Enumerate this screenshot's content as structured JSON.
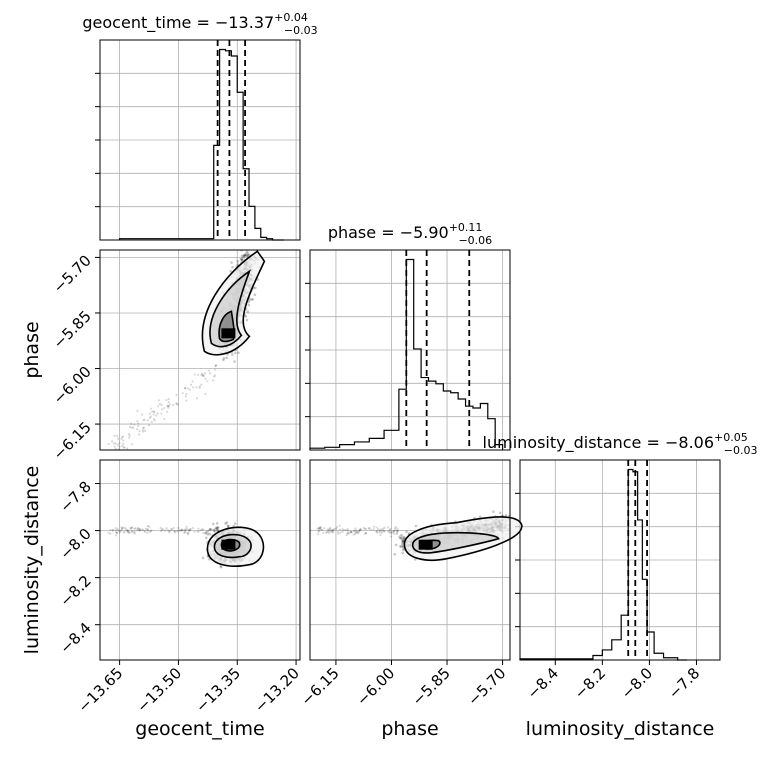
{
  "chart_data": {
    "type": "corner",
    "parameters": [
      {
        "name": "geocent_time",
        "xlabel": "geocent_time",
        "title": {
          "prefix": "geocent_time = −13.37",
          "plus": "+0.04",
          "minus": "−0.03"
        },
        "range": [
          -13.7,
          -13.19
        ],
        "ticks": [
          -13.65,
          -13.5,
          -13.35,
          -13.2
        ],
        "tick_labels": [
          "−13.65",
          "−13.50",
          "−13.35",
          "−13.20"
        ],
        "quantiles": [
          -13.4,
          -13.37,
          -13.33
        ],
        "hist_edges": [
          -13.65,
          -13.41,
          -13.395,
          -13.38,
          -13.365,
          -13.35,
          -13.335,
          -13.32,
          -13.305,
          -13.29,
          -13.275,
          -13.26,
          -13.245,
          -13.23
        ],
        "hist_counts": [
          1,
          73,
          147,
          146,
          142,
          114,
          55,
          26,
          9,
          2,
          1,
          0,
          0
        ]
      },
      {
        "name": "phase",
        "xlabel": "phase",
        "ylabel": "phase",
        "title": {
          "prefix": "phase = −5.90",
          "plus": "+0.11",
          "minus": "−0.06"
        },
        "range": [
          -6.22,
          -5.68
        ],
        "ticks": [
          -6.15,
          -6.0,
          -5.85,
          -5.7
        ],
        "tick_labels": [
          "−6.15",
          "−6.00",
          "−5.85",
          "−5.70"
        ],
        "quantiles": [
          -5.96,
          -5.905,
          -5.79
        ],
        "hist_edges": [
          -6.22,
          -6.18,
          -6.14,
          -6.1,
          -6.06,
          -6.02,
          -5.98,
          -5.96,
          -5.94,
          -5.92,
          -5.9,
          -5.88,
          -5.86,
          -5.84,
          -5.82,
          -5.8,
          -5.78,
          -5.76,
          -5.74,
          -5.72,
          -5.7
        ],
        "hist_counts": [
          2,
          3,
          6,
          9,
          13,
          22,
          68,
          213,
          113,
          81,
          77,
          74,
          66,
          64,
          57,
          49,
          47,
          52,
          35,
          6
        ]
      },
      {
        "name": "luminosity_distance",
        "xlabel": "luminosity_distance",
        "ylabel": "luminosity_distance",
        "title": {
          "prefix": "luminosity_distance = −8.06",
          "plus": "+0.05",
          "minus": "−0.03"
        },
        "range": [
          -8.55,
          -7.7
        ],
        "ticks": [
          -8.4,
          -8.2,
          -8.0,
          -7.8
        ],
        "tick_labels": [
          "−8.4",
          "−8.2",
          "−8.0",
          "−7.8"
        ],
        "quantiles": [
          -8.09,
          -8.06,
          -8.01
        ],
        "hist_edges": [
          -8.55,
          -8.24,
          -8.2,
          -8.16,
          -8.12,
          -8.09,
          -8.07,
          -8.05,
          -8.03,
          -8.01,
          -7.98,
          -7.94,
          -7.88,
          -7.84
        ],
        "hist_counts": [
          1,
          4,
          9,
          18,
          40,
          170,
          168,
          125,
          72,
          25,
          6,
          2,
          0
        ]
      }
    ],
    "contour_levels_note": "",
    "grid": true
  }
}
